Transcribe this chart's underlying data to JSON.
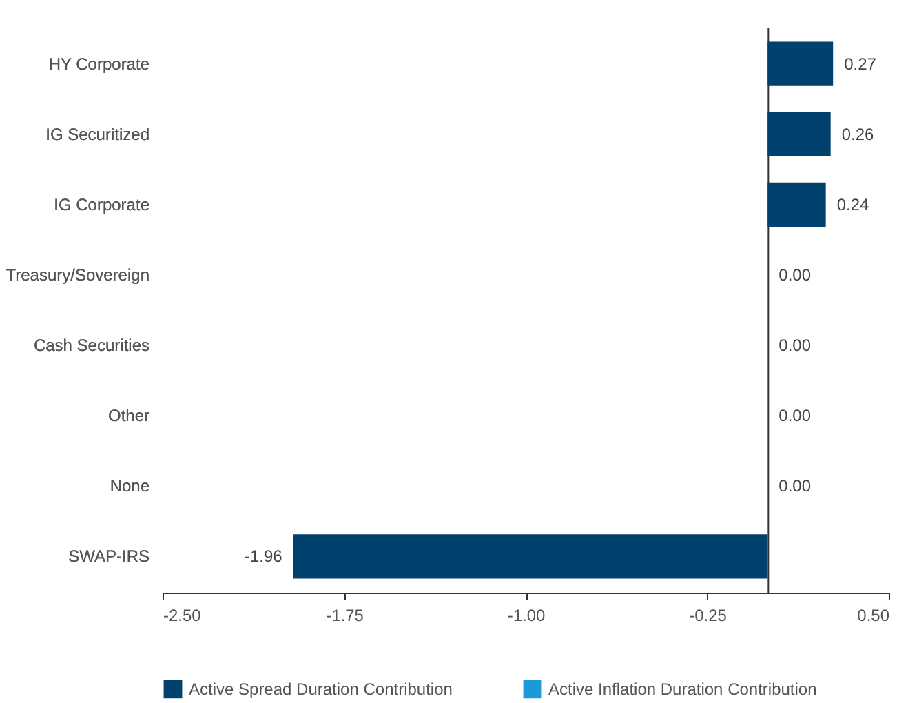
{
  "chart_data": {
    "type": "bar",
    "orientation": "horizontal",
    "categories": [
      "HY Corporate",
      "IG Securitized",
      "IG Corporate",
      "Treasury/Sovereign",
      "Cash Securities",
      "Other",
      "None",
      "SWAP-IRS"
    ],
    "series": [
      {
        "name": "Active Spread Duration Contribution",
        "color": "#00416e",
        "values": [
          0.27,
          0.26,
          0.24,
          0,
          0,
          0,
          0,
          -1.96
        ],
        "value_labels": [
          "0.27",
          "0.26",
          "0.24",
          "0.00",
          "0.00",
          "0.00",
          "0.00",
          "-1.96"
        ]
      },
      {
        "name": "Active Inflation Duration Contribution",
        "color": "#1a9ad6",
        "values": [
          null,
          null,
          null,
          null,
          null,
          null,
          null,
          null
        ]
      }
    ],
    "xlim": [
      -2.5,
      0.5
    ],
    "xticks": [
      {
        "value": -2.5,
        "label": "-2.50"
      },
      {
        "value": -1.75,
        "label": "-1.75"
      },
      {
        "value": -1,
        "label": "-1.00"
      },
      {
        "value": -0.25,
        "label": "-0.25"
      },
      {
        "value": 0.5,
        "label": "0.50"
      }
    ],
    "grid": false,
    "legend": "bottom"
  }
}
